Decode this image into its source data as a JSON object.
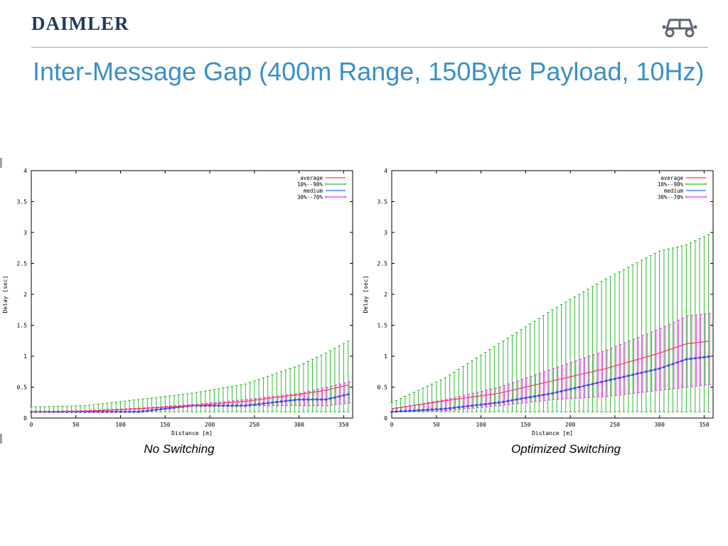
{
  "header": {
    "logo_text": "DAIMLER",
    "title": "Inter-Message Gap (400m Range, 150Byte Payload, 10Hz)"
  },
  "colors": {
    "title": "#3a8fc8",
    "logo": "#1f3a5f",
    "average": "#ff3355",
    "range_10_90": "#33bb33",
    "median": "#3366ff",
    "range_30_70": "#ee33ee"
  },
  "icons": {
    "logo_mark": "car-icon"
  },
  "chart_data": [
    {
      "type": "line",
      "caption": "No Switching",
      "xlabel": "Distance [m]",
      "ylabel": "Delay [sec]",
      "xlim": [
        0,
        360
      ],
      "ylim": [
        0,
        4
      ],
      "xticks": [
        0,
        50,
        100,
        150,
        200,
        250,
        300,
        350
      ],
      "yticks": [
        0,
        0.5,
        1,
        1.5,
        2,
        2.5,
        3,
        3.5,
        4
      ],
      "grid": false,
      "legend_position": "top-right",
      "legend": [
        "average",
        "10%--90%",
        "medium",
        "30%--70%"
      ],
      "x": [
        0,
        60,
        120,
        180,
        240,
        300,
        330,
        360
      ],
      "series": [
        {
          "name": "average",
          "values": [
            0.1,
            0.11,
            0.15,
            0.2,
            0.27,
            0.38,
            0.45,
            0.55
          ]
        },
        {
          "name": "10%--90%",
          "low": [
            0.1,
            0.1,
            0.1,
            0.1,
            0.1,
            0.1,
            0.1,
            0.1
          ],
          "high": [
            0.18,
            0.2,
            0.3,
            0.4,
            0.55,
            0.85,
            1.05,
            1.28
          ]
        },
        {
          "name": "medium",
          "values": [
            0.1,
            0.1,
            0.1,
            0.2,
            0.2,
            0.3,
            0.3,
            0.4
          ]
        },
        {
          "name": "30%--70%",
          "low": [
            0.1,
            0.1,
            0.1,
            0.2,
            0.2,
            0.2,
            0.2,
            0.25
          ],
          "high": [
            0.1,
            0.12,
            0.16,
            0.22,
            0.3,
            0.4,
            0.5,
            0.6
          ]
        }
      ]
    },
    {
      "type": "line",
      "caption": "Optimized Switching",
      "xlabel": "Distance [m]",
      "ylabel": "Delay [sec]",
      "xlim": [
        0,
        360
      ],
      "ylim": [
        0,
        4
      ],
      "xticks": [
        0,
        50,
        100,
        150,
        200,
        250,
        300,
        350
      ],
      "yticks": [
        0,
        0.5,
        1,
        1.5,
        2,
        2.5,
        3,
        3.5,
        4
      ],
      "grid": false,
      "legend_position": "top-right",
      "legend": [
        "average",
        "10%--90%",
        "medium",
        "30%--70%"
      ],
      "x": [
        0,
        60,
        120,
        180,
        240,
        300,
        330,
        360
      ],
      "series": [
        {
          "name": "average",
          "values": [
            0.15,
            0.28,
            0.4,
            0.6,
            0.8,
            1.05,
            1.2,
            1.25
          ]
        },
        {
          "name": "10%--90%",
          "low": [
            0.1,
            0.1,
            0.1,
            0.1,
            0.1,
            0.1,
            0.1,
            0.1
          ],
          "high": [
            0.25,
            0.65,
            1.2,
            1.75,
            2.25,
            2.7,
            2.8,
            3.0
          ]
        },
        {
          "name": "medium",
          "values": [
            0.1,
            0.15,
            0.25,
            0.4,
            0.6,
            0.8,
            0.95,
            1.0
          ]
        },
        {
          "name": "30%--70%",
          "low": [
            0.1,
            0.12,
            0.2,
            0.3,
            0.35,
            0.45,
            0.5,
            0.55
          ],
          "high": [
            0.15,
            0.3,
            0.5,
            0.8,
            1.1,
            1.45,
            1.65,
            1.7
          ]
        }
      ]
    }
  ]
}
